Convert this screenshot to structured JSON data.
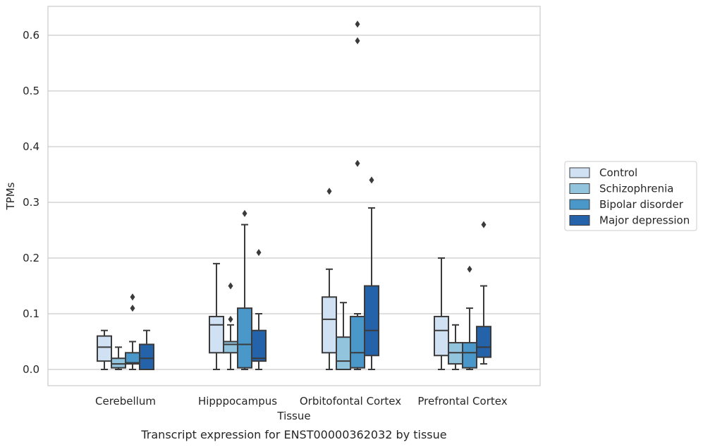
{
  "chart_data": {
    "type": "box",
    "title": "Transcript expression for ENST00000362032 by tissue",
    "xlabel": "Tissue",
    "ylabel": "TPMs",
    "ylim": [
      -0.03,
      0.655
    ],
    "yticks": [
      0.0,
      0.1,
      0.2,
      0.3,
      0.4,
      0.5,
      0.6
    ],
    "ytick_labels": [
      "0.0",
      "0.1",
      "0.2",
      "0.3",
      "0.4",
      "0.5",
      "0.6"
    ],
    "grid": "horizontal",
    "legend_position": "right",
    "categories": [
      "Cerebellum",
      "Hipppocampus",
      "Orbitofontal Cortex",
      "Prefrontal Cortex"
    ],
    "series": [
      {
        "name": "Control",
        "color": "#cfe1f2",
        "boxes": [
          {
            "min": 0.0,
            "q1": 0.015,
            "median": 0.04,
            "q3": 0.06,
            "max": 0.07,
            "outliers": []
          },
          {
            "min": 0.0,
            "q1": 0.03,
            "median": 0.08,
            "q3": 0.095,
            "max": 0.19,
            "outliers": []
          },
          {
            "min": 0.0,
            "q1": 0.03,
            "median": 0.09,
            "q3": 0.13,
            "max": 0.18,
            "outliers": [
              0.32
            ]
          },
          {
            "min": 0.0,
            "q1": 0.025,
            "median": 0.07,
            "q3": 0.095,
            "max": 0.2,
            "outliers": []
          }
        ]
      },
      {
        "name": "Schizophrenia",
        "color": "#93c4de",
        "boxes": [
          {
            "min": 0.0,
            "q1": 0.003,
            "median": 0.01,
            "q3": 0.02,
            "max": 0.04,
            "outliers": []
          },
          {
            "min": 0.0,
            "q1": 0.03,
            "median": 0.045,
            "q3": 0.05,
            "max": 0.08,
            "outliers": [
              0.09,
              0.15
            ]
          },
          {
            "min": 0.0,
            "q1": 0.0,
            "median": 0.015,
            "q3": 0.058,
            "max": 0.12,
            "outliers": []
          },
          {
            "min": 0.0,
            "q1": 0.01,
            "median": 0.03,
            "q3": 0.048,
            "max": 0.08,
            "outliers": []
          }
        ]
      },
      {
        "name": "Bipolar disorder",
        "color": "#4a98c9",
        "boxes": [
          {
            "min": 0.0,
            "q1": 0.01,
            "median": 0.012,
            "q3": 0.03,
            "max": 0.05,
            "outliers": [
              0.11,
              0.13
            ]
          },
          {
            "min": 0.0,
            "q1": 0.003,
            "median": 0.045,
            "q3": 0.11,
            "max": 0.26,
            "outliers": [
              0.28
            ]
          },
          {
            "min": 0.0,
            "q1": 0.003,
            "median": 0.03,
            "q3": 0.095,
            "max": 0.1,
            "outliers": [
              0.37,
              0.59,
              0.62
            ]
          },
          {
            "min": 0.0,
            "q1": 0.003,
            "median": 0.03,
            "q3": 0.048,
            "max": 0.11,
            "outliers": [
              0.18
            ]
          }
        ]
      },
      {
        "name": "Major depression",
        "color": "#2462a9",
        "boxes": [
          {
            "min": 0.0,
            "q1": 0.0,
            "median": 0.02,
            "q3": 0.045,
            "max": 0.07,
            "outliers": []
          },
          {
            "min": 0.0,
            "q1": 0.015,
            "median": 0.02,
            "q3": 0.07,
            "max": 0.1,
            "outliers": [
              0.21
            ]
          },
          {
            "min": 0.0,
            "q1": 0.025,
            "median": 0.07,
            "q3": 0.15,
            "max": 0.29,
            "outliers": [
              0.34
            ]
          },
          {
            "min": 0.01,
            "q1": 0.022,
            "median": 0.04,
            "q3": 0.077,
            "max": 0.15,
            "outliers": [
              0.26
            ]
          }
        ]
      }
    ]
  }
}
